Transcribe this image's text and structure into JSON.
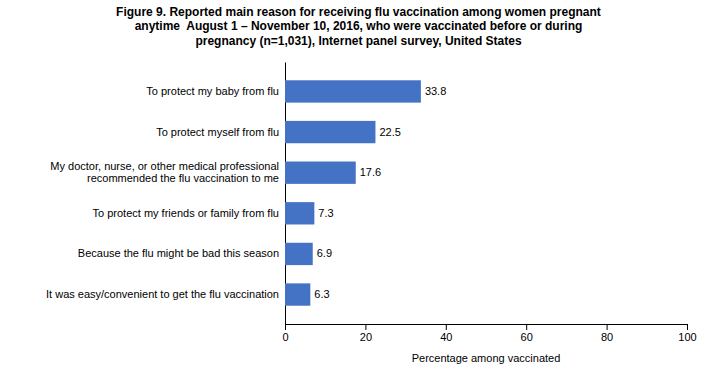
{
  "chart_data": {
    "type": "bar",
    "orientation": "horizontal",
    "title": "Figure 9. Reported main reason for receiving flu vaccination among women pregnant\nanytime  August 1 – November 10, 2016, who were vaccinated before or during\npregnancy (n=1,031), Internet panel survey, United States",
    "categories": [
      "It was easy/convenient to get the flu vaccination",
      "Because the flu might be bad this season",
      "To protect my friends or family from flu",
      "My doctor, nurse, or other medical professional\nrecommended the flu vaccination to me",
      "To protect myself from flu",
      "To protect my baby from flu"
    ],
    "values": [
      6.3,
      6.9,
      7.3,
      17.6,
      22.5,
      33.8
    ],
    "color": "#4472C4",
    "xlim": [
      0,
      100
    ],
    "xticks": [
      0,
      20,
      40,
      60,
      80,
      100
    ],
    "xlabel": "Percentage among vaccinated",
    "data_labels": true,
    "grid": false
  }
}
